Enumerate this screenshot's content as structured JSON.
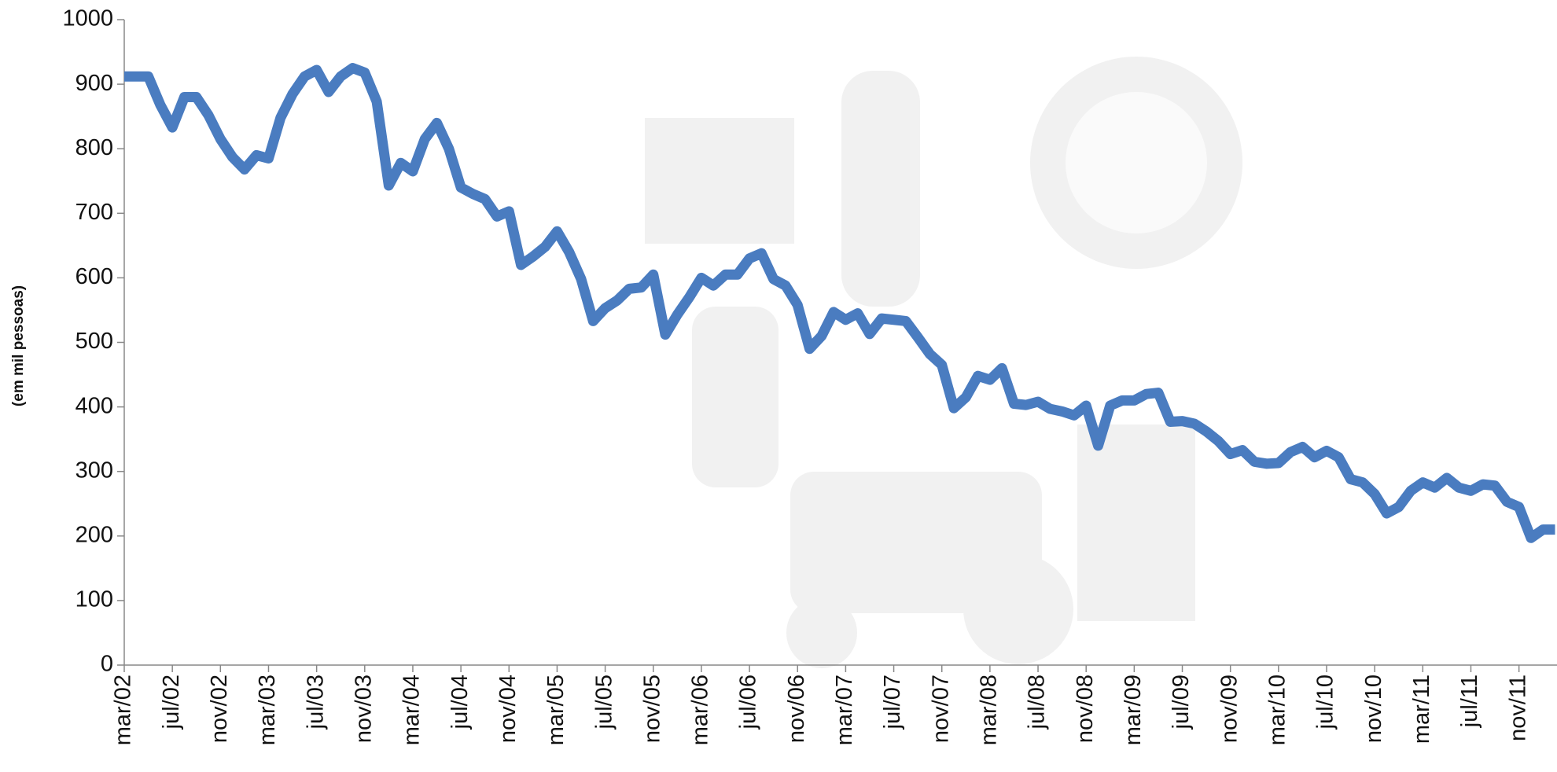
{
  "chart_data": {
    "type": "line",
    "y_label": "(em mil pessoas)",
    "categories": [
      "mar/02",
      null,
      null,
      null,
      "jul/02",
      null,
      null,
      null,
      "nov/02",
      null,
      null,
      null,
      "mar/03",
      null,
      null,
      null,
      "jul/03",
      null,
      null,
      null,
      "nov/03",
      null,
      null,
      null,
      "mar/04",
      null,
      null,
      null,
      "jul/04",
      null,
      null,
      null,
      "nov/04",
      null,
      null,
      null,
      "mar/05",
      null,
      null,
      null,
      "jul/05",
      null,
      null,
      null,
      "nov/05",
      null,
      null,
      null,
      "mar/06",
      null,
      null,
      null,
      "jul/06",
      null,
      null,
      null,
      "nov/06",
      null,
      null,
      null,
      "mar/07",
      null,
      null,
      null,
      "jul/07",
      null,
      null,
      null,
      "nov/07",
      null,
      null,
      null,
      "mar/08",
      null,
      null,
      null,
      "jul/08",
      null,
      null,
      null,
      "nov/08",
      null,
      null,
      null,
      "mar/09",
      null,
      null,
      null,
      "jul/09",
      null,
      null,
      null,
      "nov/09",
      null,
      null,
      null,
      "mar/10",
      null,
      null,
      null,
      "jul/10",
      null,
      null,
      null,
      "nov/10",
      null,
      null,
      null,
      "mar/11",
      null,
      null,
      null,
      "jul/11",
      null,
      null,
      null,
      "nov/11",
      null,
      null,
      null
    ],
    "values": [
      912,
      912,
      912,
      868,
      833,
      880,
      880,
      852,
      815,
      787,
      768,
      790,
      785,
      848,
      885,
      912,
      922,
      888,
      912,
      925,
      918,
      873,
      743,
      778,
      765,
      815,
      840,
      800,
      740,
      730,
      722,
      695,
      703,
      620,
      633,
      648,
      672,
      640,
      598,
      533,
      553,
      565,
      583,
      585,
      605,
      512,
      543,
      570,
      600,
      588,
      605,
      605,
      630,
      638,
      598,
      588,
      558,
      490,
      510,
      547,
      535,
      545,
      513,
      537,
      535,
      533,
      508,
      482,
      465,
      398,
      415,
      448,
      442,
      460,
      405,
      403,
      408,
      397,
      393,
      387,
      402,
      340,
      402,
      410,
      410,
      420,
      422,
      377,
      378,
      374,
      362,
      347,
      327,
      333,
      315,
      312,
      313,
      330,
      338,
      322,
      332,
      322,
      288,
      283,
      265,
      235,
      245,
      270,
      283,
      275,
      290,
      275,
      270,
      280,
      278,
      253,
      245,
      197,
      210,
      210
    ],
    "color": "#4a7cc0",
    "ylim": [
      0,
      1000
    ],
    "yticks": [
      0,
      100,
      200,
      300,
      400,
      500,
      600,
      700,
      800,
      900,
      1000
    ]
  }
}
